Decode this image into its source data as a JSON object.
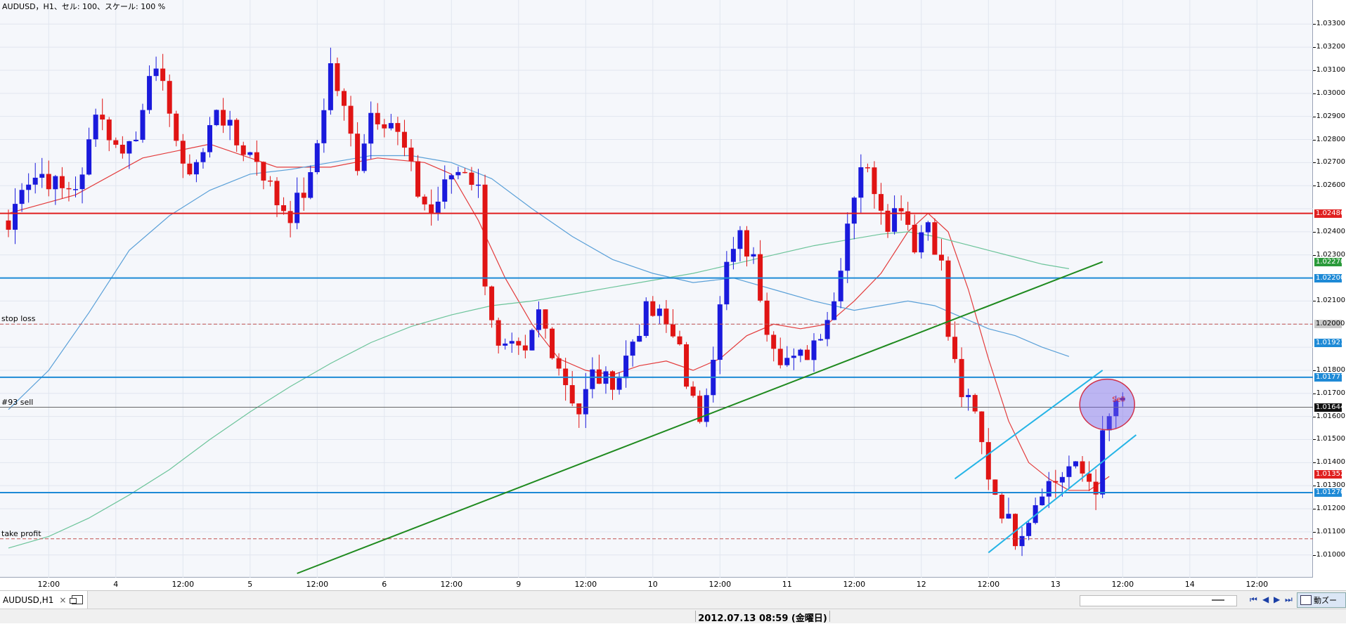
{
  "chart_data": {
    "type": "candlestick",
    "symbol_title": "AUDUSD，H1、セル: 100、スケール: 100 %",
    "price_range": [
      1.0092,
      1.0338
    ],
    "price_ticks": [
      "1.03300",
      "1.03200",
      "1.03100",
      "1.03000",
      "1.02900",
      "1.02800",
      "1.02700",
      "1.02600",
      "1.02400",
      "1.02300",
      "1.02100",
      "1.01800",
      "1.01700",
      "1.01600",
      "1.01500",
      "1.01400",
      "1.01300",
      "1.01200",
      "1.01100",
      "1.01000"
    ],
    "time_labels": [
      {
        "label": "12:00",
        "bar": 6
      },
      {
        "label": "4",
        "bar": 16
      },
      {
        "label": "12:00",
        "bar": 26
      },
      {
        "label": "5",
        "bar": 36
      },
      {
        "label": "12:00",
        "bar": 46
      },
      {
        "label": "6",
        "bar": 56
      },
      {
        "label": "12:00",
        "bar": 66
      },
      {
        "label": "9",
        "bar": 76
      },
      {
        "label": "12:00",
        "bar": 86
      },
      {
        "label": "10",
        "bar": 96
      },
      {
        "label": "12:00",
        "bar": 106
      },
      {
        "label": "11",
        "bar": 116
      },
      {
        "label": "12:00",
        "bar": 126
      },
      {
        "label": "12",
        "bar": 136
      },
      {
        "label": "12:00",
        "bar": 146
      },
      {
        "label": "13",
        "bar": 156
      },
      {
        "label": "12:00",
        "bar": 166
      },
      {
        "label": "14",
        "bar": 176
      },
      {
        "label": "12:00",
        "bar": 186
      }
    ],
    "candle_anchors": [
      [
        0,
        1.0241
      ],
      [
        2,
        1.0262
      ],
      [
        5,
        1.0265
      ],
      [
        8,
        1.0258
      ],
      [
        11,
        1.0262
      ],
      [
        13,
        1.0295
      ],
      [
        16,
        1.0276
      ],
      [
        19,
        1.028
      ],
      [
        21,
        1.0312
      ],
      [
        24,
        1.0295
      ],
      [
        26,
        1.0265
      ],
      [
        29,
        1.0274
      ],
      [
        31,
        1.0295
      ],
      [
        34,
        1.0278
      ],
      [
        37,
        1.0272
      ],
      [
        40,
        1.0253
      ],
      [
        42,
        1.0248
      ],
      [
        45,
        1.0262
      ],
      [
        48,
        1.0312
      ],
      [
        50,
        1.0292
      ],
      [
        52,
        1.027
      ],
      [
        54,
        1.0292
      ],
      [
        57,
        1.0288
      ],
      [
        59,
        1.0275
      ],
      [
        61,
        1.0257
      ],
      [
        63,
        1.0248
      ],
      [
        66,
        1.0265
      ],
      [
        68,
        1.0268
      ],
      [
        70,
        1.0258
      ],
      [
        71,
        1.022
      ],
      [
        73,
        1.0188
      ],
      [
        75,
        1.0188
      ],
      [
        77,
        1.0185
      ],
      [
        79,
        1.0205
      ],
      [
        81,
        1.019
      ],
      [
        83,
        1.0175
      ],
      [
        85,
        1.0162
      ],
      [
        87,
        1.0178
      ],
      [
        89,
        1.0175
      ],
      [
        91,
        1.0178
      ],
      [
        93,
        1.0193
      ],
      [
        95,
        1.0205
      ],
      [
        97,
        1.0203
      ],
      [
        99,
        1.0195
      ],
      [
        100,
        1.0195
      ],
      [
        101,
        1.017
      ],
      [
        103,
        1.016
      ],
      [
        105,
        1.0188
      ],
      [
        107,
        1.0225
      ],
      [
        109,
        1.0237
      ],
      [
        111,
        1.0227
      ],
      [
        113,
        1.02
      ],
      [
        115,
        1.0187
      ],
      [
        117,
        1.0183
      ],
      [
        119,
        1.0188
      ],
      [
        121,
        1.0198
      ],
      [
        123,
        1.021
      ],
      [
        125,
        1.0245
      ],
      [
        127,
        1.027
      ],
      [
        129,
        1.026
      ],
      [
        131,
        1.0245
      ],
      [
        133,
        1.0253
      ],
      [
        135,
        1.0235
      ],
      [
        137,
        1.0245
      ],
      [
        139,
        1.0225
      ],
      [
        140,
        1.0195
      ],
      [
        142,
        1.017
      ],
      [
        144,
        1.016
      ],
      [
        146,
        1.0135
      ],
      [
        148,
        1.012
      ],
      [
        150,
        1.0108
      ],
      [
        152,
        1.0117
      ],
      [
        154,
        1.013
      ],
      [
        156,
        1.0132
      ],
      [
        158,
        1.0138
      ],
      [
        160,
        1.0135
      ],
      [
        162,
        1.013
      ],
      [
        163,
        1.015
      ],
      [
        165,
        1.0167
      ],
      [
        166,
        1.0164
      ]
    ],
    "moving_averages": [
      {
        "color": "#e33b3b",
        "points": [
          [
            0,
            1.0248
          ],
          [
            10,
            1.0256
          ],
          [
            20,
            1.0272
          ],
          [
            30,
            1.0278
          ],
          [
            40,
            1.0268
          ],
          [
            48,
            1.0268
          ],
          [
            55,
            1.0272
          ],
          [
            62,
            1.027
          ],
          [
            66,
            1.0265
          ],
          [
            70,
            1.0245
          ],
          [
            74,
            1.022
          ],
          [
            78,
            1.02
          ],
          [
            82,
            1.0185
          ],
          [
            86,
            1.018
          ],
          [
            90,
            1.0178
          ],
          [
            94,
            1.0182
          ],
          [
            98,
            1.0184
          ],
          [
            102,
            1.018
          ],
          [
            106,
            1.0185
          ],
          [
            110,
            1.0195
          ],
          [
            114,
            1.02
          ],
          [
            118,
            1.0198
          ],
          [
            122,
            1.02
          ],
          [
            126,
            1.021
          ],
          [
            130,
            1.0222
          ],
          [
            134,
            1.024
          ],
          [
            137,
            1.0248
          ],
          [
            140,
            1.024
          ],
          [
            143,
            1.0215
          ],
          [
            146,
            1.0185
          ],
          [
            149,
            1.0158
          ],
          [
            152,
            1.014
          ],
          [
            155,
            1.0133
          ],
          [
            158,
            1.0128
          ],
          [
            161,
            1.0128
          ],
          [
            164,
            1.0134
          ]
        ]
      },
      {
        "color": "#5aa0d8",
        "points": [
          [
            0,
            1.0163
          ],
          [
            6,
            1.018
          ],
          [
            12,
            1.0205
          ],
          [
            18,
            1.0232
          ],
          [
            24,
            1.0247
          ],
          [
            30,
            1.0258
          ],
          [
            36,
            1.0265
          ],
          [
            42,
            1.0267
          ],
          [
            48,
            1.027
          ],
          [
            54,
            1.0273
          ],
          [
            60,
            1.0273
          ],
          [
            66,
            1.027
          ],
          [
            72,
            1.0263
          ],
          [
            78,
            1.025
          ],
          [
            84,
            1.0238
          ],
          [
            90,
            1.0228
          ],
          [
            96,
            1.0222
          ],
          [
            102,
            1.0218
          ],
          [
            108,
            1.022
          ],
          [
            114,
            1.0215
          ],
          [
            120,
            1.021
          ],
          [
            126,
            1.0206
          ],
          [
            130,
            1.0208
          ],
          [
            134,
            1.021
          ],
          [
            138,
            1.0208
          ],
          [
            142,
            1.0203
          ],
          [
            146,
            1.0198
          ],
          [
            150,
            1.0195
          ],
          [
            154,
            1.019
          ],
          [
            158,
            1.0186
          ]
        ]
      },
      {
        "color": "#6cc49a",
        "points": [
          [
            0,
            1.0103
          ],
          [
            6,
            1.0108
          ],
          [
            12,
            1.0116
          ],
          [
            18,
            1.0126
          ],
          [
            24,
            1.0137
          ],
          [
            30,
            1.015
          ],
          [
            36,
            1.0162
          ],
          [
            42,
            1.0173
          ],
          [
            48,
            1.0183
          ],
          [
            54,
            1.0192
          ],
          [
            60,
            1.0199
          ],
          [
            66,
            1.0204
          ],
          [
            72,
            1.0208
          ],
          [
            78,
            1.021
          ],
          [
            84,
            1.0213
          ],
          [
            90,
            1.0216
          ],
          [
            96,
            1.0219
          ],
          [
            102,
            1.0222
          ],
          [
            108,
            1.0226
          ],
          [
            114,
            1.023
          ],
          [
            120,
            1.0234
          ],
          [
            126,
            1.0237
          ],
          [
            130,
            1.0239
          ],
          [
            134,
            1.024
          ],
          [
            138,
            1.0238
          ],
          [
            142,
            1.0235
          ],
          [
            146,
            1.0232
          ],
          [
            150,
            1.0229
          ],
          [
            154,
            1.0226
          ],
          [
            158,
            1.0224
          ]
        ]
      }
    ],
    "horizontal_lines": [
      {
        "price": 1.0248,
        "color": "#e02020",
        "width": 2
      },
      {
        "price": 1.022,
        "color": "#1e8ad6",
        "width": 2
      },
      {
        "price": 1.0177,
        "color": "#1e8ad6",
        "width": 2
      },
      {
        "price": 1.0164,
        "color": "#666666",
        "width": 1
      },
      {
        "price": 1.0127,
        "color": "#1e8ad6",
        "width": 2
      }
    ],
    "dashed_lines": [
      {
        "price": 1.02,
        "color": "#c05050",
        "label": "stop loss"
      },
      {
        "price": 1.0107,
        "color": "#c05050",
        "label": "take profit"
      }
    ],
    "order_label": "#93 sell",
    "trend_line": {
      "color": "#1f8a1f",
      "from": [
        43,
        1.0092
      ],
      "to": [
        163,
        1.0227
      ]
    },
    "channel": {
      "color": "#25b4e6",
      "upper": [
        [
          141,
          1.0133
        ],
        [
          163,
          1.018
        ]
      ],
      "lower": [
        [
          146,
          1.0101
        ],
        [
          168,
          1.0152
        ]
      ]
    },
    "marker": {
      "label": "Sell",
      "price": 1.0167,
      "bar": 164
    },
    "price_badges": [
      {
        "text": "1.02480",
        "price": 1.0248,
        "color": "#e02020"
      },
      {
        "text": "1.02270",
        "price": 1.0227,
        "color": "#2a9a3a"
      },
      {
        "text": "1.02200",
        "price": 1.022,
        "color": "#1e8ad6"
      },
      {
        "text": "1.02000",
        "price": 1.02,
        "color": "#c8c8c8"
      },
      {
        "text": "1.01921",
        "price": 1.0192,
        "color": "#1e8ad6"
      },
      {
        "text": "1.01777",
        "price": 1.0177,
        "color": "#1e8ad6"
      },
      {
        "text": "1.01644",
        "price": 1.0164,
        "color": "#111111"
      },
      {
        "text": "1.01352",
        "price": 1.0135,
        "color": "#e02020"
      },
      {
        "text": "1.01270",
        "price": 1.0127,
        "color": "#1e8ad6"
      }
    ],
    "bull_color": "#1a1adc",
    "bear_color": "#e01414"
  },
  "tabs": {
    "active_label": "AUDUSD,H1",
    "close_label": "×"
  },
  "nav": {
    "first": "⏮",
    "prev": "◀",
    "next": "▶",
    "last": "⏭",
    "zoom_label": "動ズー"
  },
  "status": {
    "datetime": "2012.07.13 08:59 (金曜日)"
  }
}
